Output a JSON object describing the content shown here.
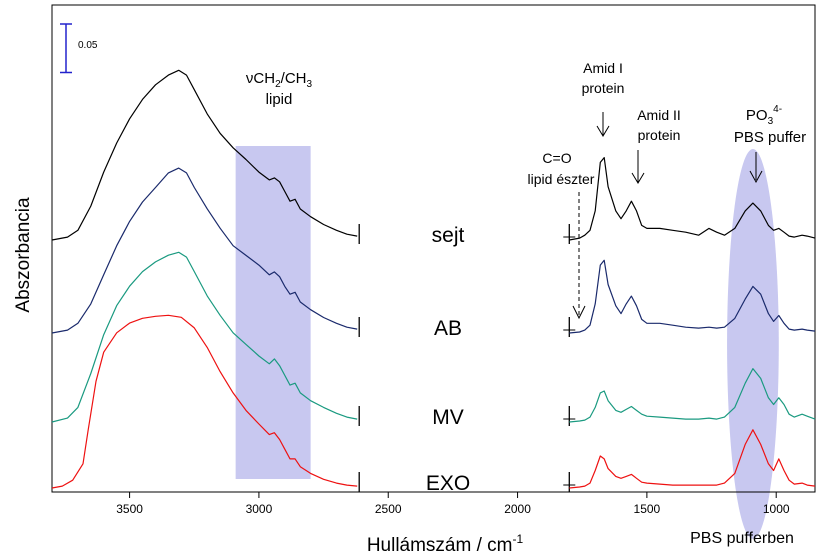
{
  "chart_data": {
    "type": "line",
    "title": "",
    "xlabel": "Hullámszám / cm",
    "xlabel_sup": "-1",
    "ylabel": "Abszorbancia",
    "x_reversed": true,
    "xlim": [
      3800,
      850
    ],
    "x_ticks": [
      {
        "value": 3500,
        "label": "3500"
      },
      {
        "value": 3000,
        "label": "3000"
      },
      {
        "value": 2500,
        "label": "2500"
      },
      {
        "value": 2000,
        "label": "2000"
      },
      {
        "value": 1500,
        "label": "1500"
      },
      {
        "value": 1000,
        "label": "1000"
      }
    ],
    "x_break": [
      2620,
      1800
    ],
    "scale_bar": {
      "label": "0.05",
      "value": 0.05,
      "color": "#2222cc"
    },
    "shaded_band": {
      "from": 3090,
      "to": 2800,
      "color": "#c8c8f0"
    },
    "shaded_ellipse": {
      "center": 1090,
      "halfwidth": 100,
      "color": "#c8c8f0"
    },
    "series": [
      {
        "name": "sejt",
        "color": "#000000",
        "left": [
          [
            3800,
            0
          ],
          [
            3740,
            0.003
          ],
          [
            3700,
            0.01
          ],
          [
            3650,
            0.035
          ],
          [
            3600,
            0.07
          ],
          [
            3550,
            0.1
          ],
          [
            3500,
            0.125
          ],
          [
            3450,
            0.145
          ],
          [
            3400,
            0.16
          ],
          [
            3350,
            0.17
          ],
          [
            3310,
            0.175
          ],
          [
            3280,
            0.17
          ],
          [
            3250,
            0.155
          ],
          [
            3200,
            0.13
          ],
          [
            3150,
            0.11
          ],
          [
            3100,
            0.095
          ],
          [
            3050,
            0.083
          ],
          [
            3000,
            0.07
          ],
          [
            2960,
            0.062
          ],
          [
            2940,
            0.064
          ],
          [
            2920,
            0.06
          ],
          [
            2900,
            0.05
          ],
          [
            2880,
            0.04
          ],
          [
            2860,
            0.042
          ],
          [
            2840,
            0.032
          ],
          [
            2800,
            0.024
          ],
          [
            2750,
            0.016
          ],
          [
            2700,
            0.01
          ],
          [
            2660,
            0.006
          ],
          [
            2620,
            0.004
          ]
        ],
        "right": [
          [
            1800,
            0
          ],
          [
            1760,
            0.002
          ],
          [
            1740,
            0.005
          ],
          [
            1720,
            0.01
          ],
          [
            1700,
            0.03
          ],
          [
            1680,
            0.08
          ],
          [
            1665,
            0.085
          ],
          [
            1650,
            0.055
          ],
          [
            1620,
            0.03
          ],
          [
            1600,
            0.022
          ],
          [
            1580,
            0.03
          ],
          [
            1560,
            0.04
          ],
          [
            1540,
            0.03
          ],
          [
            1520,
            0.015
          ],
          [
            1500,
            0.012
          ],
          [
            1450,
            0.012
          ],
          [
            1400,
            0.01
          ],
          [
            1350,
            0.008
          ],
          [
            1300,
            0.005
          ],
          [
            1260,
            0.012
          ],
          [
            1230,
            0.008
          ],
          [
            1200,
            0.005
          ],
          [
            1160,
            0.012
          ],
          [
            1120,
            0.03
          ],
          [
            1090,
            0.038
          ],
          [
            1060,
            0.03
          ],
          [
            1030,
            0.015
          ],
          [
            1010,
            0.01
          ],
          [
            990,
            0.012
          ],
          [
            970,
            0.008
          ],
          [
            950,
            0.004
          ],
          [
            930,
            0.003
          ],
          [
            900,
            0.005
          ],
          [
            880,
            0.004
          ],
          [
            850,
            0.002
          ]
        ]
      },
      {
        "name": "AB",
        "color": "#1a2a6c",
        "left": [
          [
            3800,
            0
          ],
          [
            3740,
            0.003
          ],
          [
            3700,
            0.01
          ],
          [
            3650,
            0.03
          ],
          [
            3600,
            0.06
          ],
          [
            3550,
            0.09
          ],
          [
            3500,
            0.115
          ],
          [
            3450,
            0.135
          ],
          [
            3400,
            0.15
          ],
          [
            3350,
            0.165
          ],
          [
            3310,
            0.17
          ],
          [
            3280,
            0.165
          ],
          [
            3250,
            0.15
          ],
          [
            3200,
            0.128
          ],
          [
            3150,
            0.108
          ],
          [
            3100,
            0.09
          ],
          [
            3050,
            0.08
          ],
          [
            3000,
            0.07
          ],
          [
            2960,
            0.06
          ],
          [
            2940,
            0.063
          ],
          [
            2920,
            0.058
          ],
          [
            2900,
            0.048
          ],
          [
            2880,
            0.04
          ],
          [
            2860,
            0.042
          ],
          [
            2840,
            0.032
          ],
          [
            2800,
            0.024
          ],
          [
            2750,
            0.016
          ],
          [
            2700,
            0.01
          ],
          [
            2660,
            0.006
          ],
          [
            2620,
            0.004
          ]
        ],
        "right": [
          [
            1800,
            0
          ],
          [
            1760,
            0.001
          ],
          [
            1740,
            0.003
          ],
          [
            1720,
            0.008
          ],
          [
            1700,
            0.03
          ],
          [
            1680,
            0.07
          ],
          [
            1665,
            0.075
          ],
          [
            1650,
            0.05
          ],
          [
            1620,
            0.028
          ],
          [
            1600,
            0.02
          ],
          [
            1580,
            0.03
          ],
          [
            1560,
            0.038
          ],
          [
            1540,
            0.028
          ],
          [
            1520,
            0.014
          ],
          [
            1500,
            0.01
          ],
          [
            1450,
            0.01
          ],
          [
            1400,
            0.008
          ],
          [
            1350,
            0.006
          ],
          [
            1300,
            0.005
          ],
          [
            1260,
            0.006
          ],
          [
            1230,
            0.005
          ],
          [
            1200,
            0.006
          ],
          [
            1160,
            0.015
          ],
          [
            1120,
            0.035
          ],
          [
            1090,
            0.048
          ],
          [
            1060,
            0.04
          ],
          [
            1030,
            0.02
          ],
          [
            1010,
            0.012
          ],
          [
            990,
            0.018
          ],
          [
            970,
            0.01
          ],
          [
            950,
            0.004
          ],
          [
            930,
            0.003
          ],
          [
            900,
            0.004
          ],
          [
            880,
            0.003
          ],
          [
            850,
            0.002
          ]
        ]
      },
      {
        "name": "MV",
        "color": "#1a9a80",
        "left": [
          [
            3800,
            0
          ],
          [
            3740,
            0.004
          ],
          [
            3700,
            0.015
          ],
          [
            3650,
            0.05
          ],
          [
            3600,
            0.09
          ],
          [
            3550,
            0.12
          ],
          [
            3500,
            0.14
          ],
          [
            3450,
            0.155
          ],
          [
            3400,
            0.165
          ],
          [
            3350,
            0.172
          ],
          [
            3310,
            0.175
          ],
          [
            3280,
            0.17
          ],
          [
            3250,
            0.155
          ],
          [
            3200,
            0.13
          ],
          [
            3150,
            0.11
          ],
          [
            3100,
            0.092
          ],
          [
            3050,
            0.08
          ],
          [
            3000,
            0.068
          ],
          [
            2960,
            0.06
          ],
          [
            2940,
            0.065
          ],
          [
            2920,
            0.058
          ],
          [
            2900,
            0.048
          ],
          [
            2880,
            0.038
          ],
          [
            2860,
            0.04
          ],
          [
            2840,
            0.03
          ],
          [
            2800,
            0.022
          ],
          [
            2750,
            0.015
          ],
          [
            2700,
            0.009
          ],
          [
            2660,
            0.005
          ],
          [
            2620,
            0.003
          ]
        ],
        "right": [
          [
            1800,
            0
          ],
          [
            1760,
            0.001
          ],
          [
            1740,
            0.002
          ],
          [
            1720,
            0.005
          ],
          [
            1700,
            0.015
          ],
          [
            1680,
            0.03
          ],
          [
            1665,
            0.032
          ],
          [
            1650,
            0.022
          ],
          [
            1620,
            0.012
          ],
          [
            1600,
            0.01
          ],
          [
            1580,
            0.013
          ],
          [
            1560,
            0.016
          ],
          [
            1540,
            0.012
          ],
          [
            1520,
            0.008
          ],
          [
            1500,
            0.006
          ],
          [
            1450,
            0.005
          ],
          [
            1400,
            0.004
          ],
          [
            1350,
            0.003
          ],
          [
            1300,
            0.003
          ],
          [
            1260,
            0.004
          ],
          [
            1230,
            0.003
          ],
          [
            1200,
            0.005
          ],
          [
            1160,
            0.015
          ],
          [
            1120,
            0.04
          ],
          [
            1090,
            0.055
          ],
          [
            1060,
            0.045
          ],
          [
            1030,
            0.025
          ],
          [
            1010,
            0.018
          ],
          [
            990,
            0.025
          ],
          [
            970,
            0.018
          ],
          [
            950,
            0.008
          ],
          [
            930,
            0.005
          ],
          [
            900,
            0.008
          ],
          [
            880,
            0.006
          ],
          [
            850,
            0.003
          ]
        ]
      },
      {
        "name": "EXO",
        "color": "#ee1111",
        "left": [
          [
            3800,
            0
          ],
          [
            3760,
            0.002
          ],
          [
            3720,
            0.008
          ],
          [
            3680,
            0.025
          ],
          [
            3660,
            0.06
          ],
          [
            3630,
            0.11
          ],
          [
            3600,
            0.14
          ],
          [
            3550,
            0.16
          ],
          [
            3500,
            0.17
          ],
          [
            3450,
            0.175
          ],
          [
            3400,
            0.177
          ],
          [
            3350,
            0.178
          ],
          [
            3300,
            0.176
          ],
          [
            3250,
            0.165
          ],
          [
            3200,
            0.145
          ],
          [
            3150,
            0.12
          ],
          [
            3100,
            0.098
          ],
          [
            3050,
            0.08
          ],
          [
            3000,
            0.066
          ],
          [
            2960,
            0.055
          ],
          [
            2940,
            0.057
          ],
          [
            2920,
            0.05
          ],
          [
            2900,
            0.04
          ],
          [
            2880,
            0.03
          ],
          [
            2860,
            0.03
          ],
          [
            2840,
            0.022
          ],
          [
            2800,
            0.015
          ],
          [
            2750,
            0.009
          ],
          [
            2700,
            0.005
          ],
          [
            2660,
            0.003
          ],
          [
            2620,
            0.002
          ]
        ],
        "right": [
          [
            1800,
            0
          ],
          [
            1760,
            0.001
          ],
          [
            1740,
            0.002
          ],
          [
            1720,
            0.005
          ],
          [
            1700,
            0.018
          ],
          [
            1680,
            0.033
          ],
          [
            1665,
            0.03
          ],
          [
            1650,
            0.02
          ],
          [
            1620,
            0.012
          ],
          [
            1600,
            0.01
          ],
          [
            1580,
            0.012
          ],
          [
            1560,
            0.014
          ],
          [
            1540,
            0.01
          ],
          [
            1520,
            0.006
          ],
          [
            1500,
            0.005
          ],
          [
            1450,
            0.004
          ],
          [
            1400,
            0.003
          ],
          [
            1350,
            0.003
          ],
          [
            1300,
            0.003
          ],
          [
            1260,
            0.003
          ],
          [
            1230,
            0.003
          ],
          [
            1200,
            0.005
          ],
          [
            1160,
            0.015
          ],
          [
            1120,
            0.045
          ],
          [
            1090,
            0.06
          ],
          [
            1060,
            0.045
          ],
          [
            1030,
            0.025
          ],
          [
            1010,
            0.018
          ],
          [
            990,
            0.03
          ],
          [
            970,
            0.018
          ],
          [
            950,
            0.008
          ],
          [
            930,
            0.004
          ],
          [
            900,
            0.005
          ],
          [
            880,
            0.003
          ],
          [
            850,
            0.002
          ]
        ]
      }
    ],
    "series_labels": [
      "sejt",
      "AB",
      "MV",
      "EXO"
    ],
    "annotations": {
      "cho_line1": "νCH",
      "cho_sub1": "2",
      "cho_mid": "/CH",
      "cho_sub2": "3",
      "cho_line2": "lipid",
      "amid1_line1": "Amid I",
      "amid1_line2": "protein",
      "amid2_line1": "Amid II",
      "amid2_line2": "protein",
      "co_line1": "C=O",
      "co_line2": "lipid észter",
      "po_line1": "PO",
      "po_sub": "3",
      "po_sup": "4-",
      "po_line2": "PBS puffer",
      "pbs_caption": "PBS pufferben"
    }
  }
}
